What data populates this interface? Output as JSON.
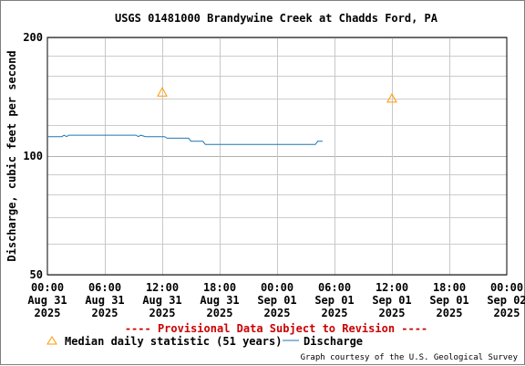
{
  "chart_data": {
    "type": "line",
    "title": "USGS 01481000 Brandywine Creek at Chadds Ford, PA",
    "ylabel": "Discharge, cubic feet per second",
    "xlabel": "",
    "y_scale": "log",
    "ylim": [
      50,
      200
    ],
    "y_ticks": [
      "200",
      "100",
      "50"
    ],
    "x_ticks": [
      [
        "00:00",
        "Aug 31",
        "2025"
      ],
      [
        "06:00",
        "Aug 31",
        "2025"
      ],
      [
        "12:00",
        "Aug 31",
        "2025"
      ],
      [
        "18:00",
        "Aug 31",
        "2025"
      ],
      [
        "00:00",
        "Sep 01",
        "2025"
      ],
      [
        "06:00",
        "Sep 01",
        "2025"
      ],
      [
        "12:00",
        "Sep 01",
        "2025"
      ],
      [
        "18:00",
        "Sep 01",
        "2025"
      ],
      [
        "00:00",
        "Sep 02",
        "2025"
      ]
    ],
    "grid": true,
    "series": [
      {
        "name": "Discharge",
        "color": "#1f77b4",
        "type": "line",
        "x": [
          "2025-08-31 00:00",
          "2025-08-31 01:30",
          "2025-08-31 01:45",
          "2025-08-31 02:00",
          "2025-08-31 02:15",
          "2025-08-31 09:15",
          "2025-08-31 09:30",
          "2025-08-31 09:45",
          "2025-08-31 10:15",
          "2025-08-31 12:15",
          "2025-08-31 12:30",
          "2025-08-31 14:45",
          "2025-08-31 15:00",
          "2025-08-31 16:15",
          "2025-08-31 16:30",
          "2025-09-01 04:00",
          "2025-09-01 04:15",
          "2025-09-01 04:45"
        ],
        "values": [
          112,
          112,
          113,
          112,
          113,
          113,
          112,
          113,
          112,
          112,
          111,
          111,
          109,
          109,
          107,
          107,
          109,
          109
        ]
      },
      {
        "name": "Median daily statistic (51 years)",
        "color": "#ff9900",
        "type": "marker",
        "marker": "triangle",
        "x": [
          "2025-08-31 12:00",
          "2025-09-01 12:00"
        ],
        "values": [
          145,
          140
        ]
      }
    ],
    "legend": [
      {
        "label": "Median daily statistic (51 years)",
        "marker": "triangle",
        "color": "#ff9900"
      },
      {
        "label": "Discharge",
        "marker": "line",
        "color": "#1f77b4"
      }
    ],
    "legend_position": "bottom"
  },
  "provisional_text": "---- Provisional Data Subject to Revision ----",
  "credit_text": "Graph courtesy of the U.S. Geological Survey"
}
